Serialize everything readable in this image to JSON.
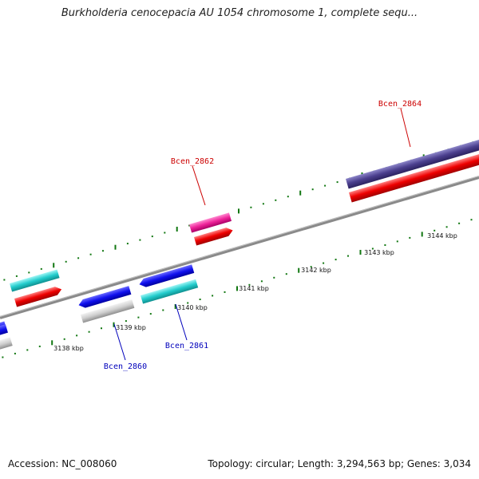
{
  "title": "Burkholderia cenocepacia AU 1054 chromosome 1, complete sequ...",
  "footer": {
    "accession": "Accession: NC_008060",
    "info": "Topology: circular; Length: 3,294,563 bp; Genes: 3,034"
  },
  "scale": {
    "ticks": [
      "3138 kbp",
      "3139 kbp",
      "3140 kbp",
      "3141 kbp",
      "3142 kbp",
      "3143 kbp",
      "3144 kbp"
    ]
  },
  "labels": {
    "forward": [
      "Bcen_2862",
      "Bcen_2864"
    ],
    "reverse": [
      "Bcen_2860",
      "Bcen_2861"
    ]
  },
  "colors": {
    "label_forward": "#cc0000",
    "label_reverse": "#0000bb",
    "backbone": "#888888",
    "tick": "#117711"
  }
}
